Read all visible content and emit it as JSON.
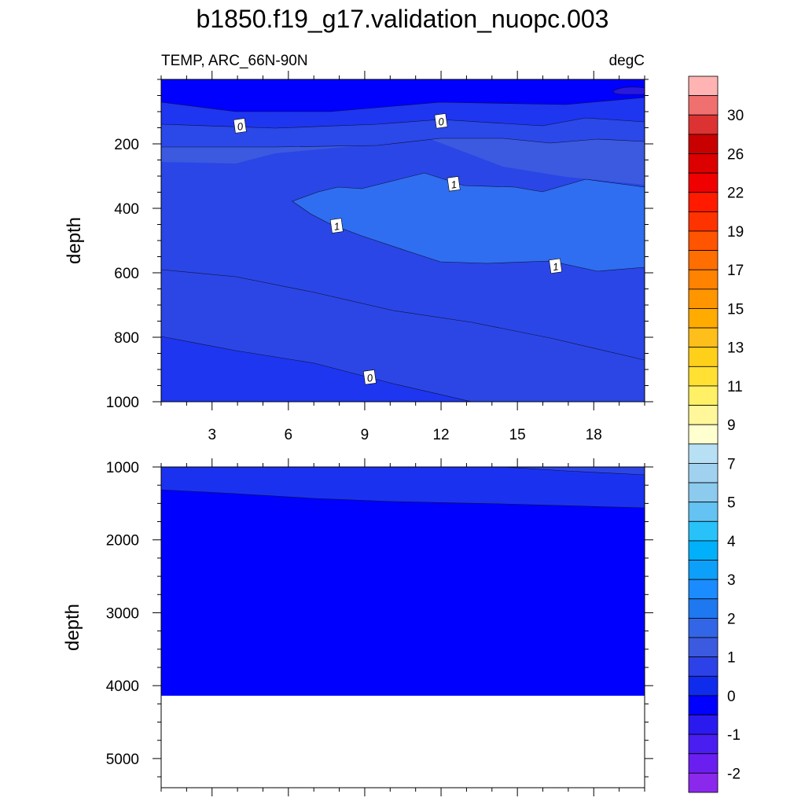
{
  "chart_data": {
    "type": "contour",
    "title": "b1850.f19_g17.validation_nuopc.003",
    "variable_label": "TEMP, ARC_66N-90N",
    "units_label": "degC",
    "panels": [
      {
        "name": "upper",
        "ylabel": "depth",
        "xlabel": "",
        "xlim": [
          1,
          20
        ],
        "ylim": [
          1000,
          0
        ],
        "xticks": [
          3,
          6,
          9,
          12,
          15,
          18
        ],
        "xtick_labels": [
          "3",
          "6",
          "9",
          "12",
          "15",
          "18"
        ],
        "yticks": [
          200,
          400,
          600,
          800,
          1000
        ],
        "ytick_labels": [
          "200",
          "400",
          "600",
          "800",
          "1000"
        ],
        "contour_labels": [
          {
            "text": "0",
            "x": 4.1,
            "depth": 145
          },
          {
            "text": "0",
            "x": 12.0,
            "depth": 130
          },
          {
            "text": "1",
            "x": 12.5,
            "depth": 325
          },
          {
            "text": "1",
            "x": 7.9,
            "depth": 455
          },
          {
            "text": "1",
            "x": 16.5,
            "depth": 580
          },
          {
            "text": "0",
            "x": 9.2,
            "depth": 925
          }
        ]
      },
      {
        "name": "lower",
        "ylabel": "depth",
        "xlabel": "",
        "xlim": [
          1,
          20
        ],
        "ylim": [
          5400,
          1000
        ],
        "xticks": [
          3,
          6,
          9,
          12,
          15,
          18
        ],
        "yticks": [
          1000,
          2000,
          3000,
          4000,
          5000
        ],
        "ytick_labels": [
          "1000",
          "2000",
          "3000",
          "4000",
          "5000"
        ],
        "bottom_depth": 4120
      }
    ],
    "colorbar": {
      "colors": [
        "#ffb3b3",
        "#f07070",
        "#dc3232",
        "#c80000",
        "#dc0000",
        "#f00000",
        "#ff1a00",
        "#ff3300",
        "#ff5500",
        "#ff6e00",
        "#ff8200",
        "#ff9600",
        "#ffab00",
        "#ffbf1a",
        "#ffd01a",
        "#ffe033",
        "#fff066",
        "#fff799",
        "#ffffd0",
        "#b8e0f5",
        "#a0d2f0",
        "#8ccaee",
        "#64c3f2",
        "#28c2f9",
        "#00b0fa",
        "#0ca0fa",
        "#1a8cff",
        "#1e78f0",
        "#3366e6",
        "#3c5ae0",
        "#2c42e8",
        "#0f2ced",
        "#0000ff",
        "#2b1af0",
        "#4a1ef0",
        "#6a1ff0",
        "#8a28ec"
      ],
      "labels": [
        "30",
        "26",
        "22",
        "19",
        "17",
        "15",
        "13",
        "11",
        "9",
        "7",
        "5",
        "4",
        "3",
        "2",
        "1",
        "0",
        "-1",
        "-2"
      ]
    }
  }
}
